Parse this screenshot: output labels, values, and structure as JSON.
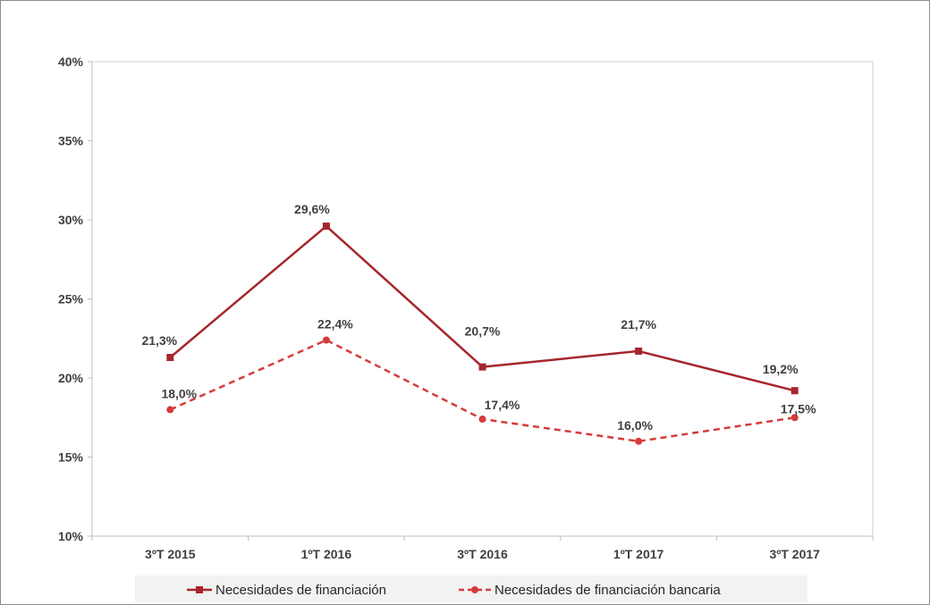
{
  "chart_data": {
    "type": "line",
    "title": "",
    "xlabel": "",
    "ylabel": "",
    "categories": [
      "3ºT 2015",
      "1ºT 2016",
      "3ºT 2016",
      "1ºT 2017",
      "3ºT 2017"
    ],
    "ylim": [
      10,
      40
    ],
    "yticks": [
      "10%",
      "15%",
      "20%",
      "25%",
      "30%",
      "35%",
      "40%"
    ],
    "grid": false,
    "legend_position": "bottom",
    "series": [
      {
        "name": "Necesidades de financiación",
        "values": [
          21.3,
          29.6,
          20.7,
          21.7,
          19.2
        ],
        "labels": [
          "21,3%",
          "29,6%",
          "20,7%",
          "21,7%",
          "19,2%"
        ],
        "color": "#a6262b",
        "line_style": "solid",
        "marker": "square"
      },
      {
        "name": "Necesidades de financiación bancaria",
        "values": [
          18.0,
          22.4,
          17.4,
          16.0,
          17.5
        ],
        "labels": [
          "18,0%",
          "22,4%",
          "17,4%",
          "16,0%",
          "17,5%"
        ],
        "color": "#d63b3b",
        "line_style": "dashed",
        "marker": "circle"
      }
    ]
  }
}
